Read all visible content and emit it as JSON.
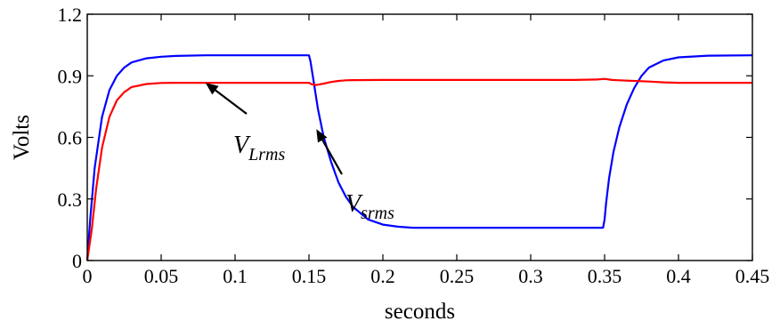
{
  "chart_data": {
    "type": "line",
    "xlabel": "seconds",
    "ylabel": "Volts",
    "xlim": [
      0,
      0.45
    ],
    "ylim": [
      0,
      1.2
    ],
    "xticks": [
      0,
      0.05,
      0.1,
      0.15,
      0.2,
      0.25,
      0.3,
      0.35,
      0.4,
      0.45
    ],
    "xtick_labels": [
      "0",
      "0.05",
      "0.1",
      "0.15",
      "0.2",
      "0.25",
      "0.3",
      "0.35",
      "0.4",
      "0.45"
    ],
    "yticks": [
      0,
      0.3,
      0.6,
      0.9,
      1.2
    ],
    "ytick_labels": [
      "0",
      "0.3",
      "0.6",
      "0.9",
      "1.2"
    ],
    "grid": false,
    "series": [
      {
        "color": "#0000ff",
        "x": [
          0,
          0.002,
          0.005,
          0.01,
          0.015,
          0.02,
          0.025,
          0.03,
          0.04,
          0.05,
          0.06,
          0.08,
          0.1,
          0.12,
          0.15,
          0.151,
          0.153,
          0.156,
          0.16,
          0.165,
          0.17,
          0.175,
          0.18,
          0.19,
          0.2,
          0.21,
          0.22,
          0.25,
          0.3,
          0.349,
          0.35,
          0.351,
          0.353,
          0.356,
          0.36,
          0.365,
          0.37,
          0.375,
          0.38,
          0.39,
          0.4,
          0.42,
          0.45
        ],
        "y": [
          0,
          0.2,
          0.45,
          0.7,
          0.83,
          0.9,
          0.94,
          0.965,
          0.985,
          0.993,
          0.997,
          1.0,
          1.0,
          1.0,
          1.0,
          0.97,
          0.88,
          0.74,
          0.6,
          0.48,
          0.38,
          0.31,
          0.26,
          0.2,
          0.175,
          0.165,
          0.16,
          0.16,
          0.16,
          0.16,
          0.2,
          0.28,
          0.4,
          0.53,
          0.65,
          0.76,
          0.84,
          0.9,
          0.94,
          0.975,
          0.99,
          0.998,
          1.0
        ]
      },
      {
        "color": "#ff0000",
        "x": [
          0,
          0.003,
          0.006,
          0.01,
          0.015,
          0.02,
          0.025,
          0.03,
          0.04,
          0.05,
          0.06,
          0.08,
          0.1,
          0.12,
          0.15,
          0.152,
          0.155,
          0.16,
          0.165,
          0.17,
          0.175,
          0.18,
          0.2,
          0.25,
          0.3,
          0.33,
          0.345,
          0.35,
          0.355,
          0.36,
          0.37,
          0.38,
          0.39,
          0.4,
          0.42,
          0.45
        ],
        "y": [
          0,
          0.15,
          0.35,
          0.55,
          0.7,
          0.78,
          0.82,
          0.845,
          0.86,
          0.865,
          0.866,
          0.866,
          0.866,
          0.866,
          0.866,
          0.858,
          0.855,
          0.862,
          0.87,
          0.875,
          0.878,
          0.879,
          0.88,
          0.88,
          0.88,
          0.88,
          0.882,
          0.885,
          0.88,
          0.878,
          0.875,
          0.872,
          0.868,
          0.866,
          0.866,
          0.866
        ]
      }
    ],
    "annotations": [
      {
        "main": "V",
        "sub": "Lrms",
        "arrow_to": [
          0.08,
          0.866
        ]
      },
      {
        "main": "V",
        "sub": "srms",
        "arrow_to": [
          0.155,
          0.64
        ]
      }
    ]
  }
}
